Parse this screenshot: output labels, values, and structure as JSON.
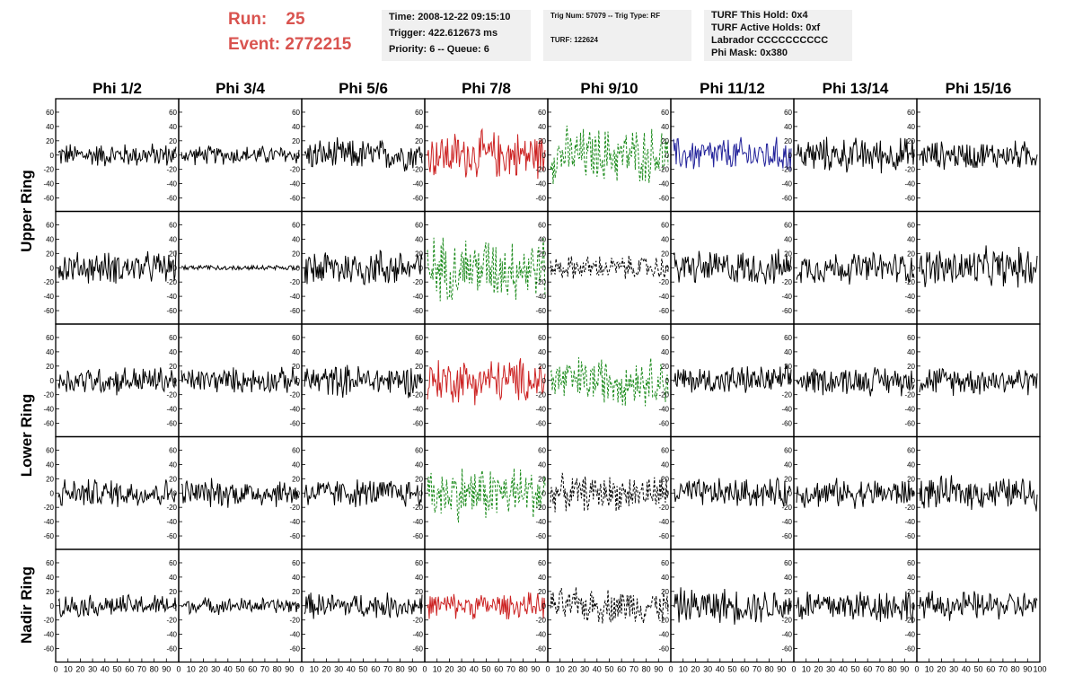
{
  "header": {
    "run_label": "Run:",
    "run_value": "25",
    "event_label": "Event:",
    "event_value": "2772215",
    "time": "Time: 2008-12-22 09:15:10",
    "trigger": "Trigger: 422.612673 ms",
    "priority": "Priority: 6 -- Queue: 6",
    "trig": "Trig Num: 57079 -- Trig Type: RF",
    "turf": "TURF: 122624",
    "hold": "TURF This Hold: 0x4",
    "active": "TURF Active Holds: 0xf",
    "labrador": "Labrador CCCCCCCCCC",
    "phimask": "Phi Mask: 0x380"
  },
  "columns": [
    "Phi 1/2",
    "Phi 3/4",
    "Phi 5/6",
    "Phi 7/8",
    "Phi 9/10",
    "Phi 11/12",
    "Phi 13/14",
    "Phi 15/16"
  ],
  "rings": [
    "Upper Ring",
    "Lower Ring",
    "Nadir Ring"
  ],
  "colors": {
    "black": "#000000",
    "red": "#cc2222",
    "green": "#1a8a1a",
    "blue": "#22229a",
    "title": "#d9534f"
  },
  "chart_data": {
    "type": "line",
    "grid": {
      "rows": 5,
      "cols": 8
    },
    "ylim": [
      -70,
      70
    ],
    "xlim": [
      0,
      100
    ],
    "yticks": [
      "60",
      "40",
      "20",
      "0",
      "-20",
      "-40",
      "-60"
    ],
    "xticks": [
      "0",
      "10",
      "20",
      "30",
      "40",
      "50",
      "60",
      "70",
      "80",
      "90",
      "100"
    ],
    "panels": [
      [
        "black",
        "black",
        "black",
        "red",
        "green-dashed",
        "blue",
        "black",
        "black"
      ],
      [
        "black",
        "black-flat",
        "black",
        "green-dashed",
        "black-dashed",
        "black",
        "black",
        "black"
      ],
      [
        "black",
        "black",
        "black",
        "red",
        "green-dashed",
        "black",
        "black",
        "black"
      ],
      [
        "black",
        "black",
        "black",
        "green-dashed",
        "black-dashed",
        "black",
        "black",
        "black"
      ],
      [
        "black",
        "black",
        "black",
        "red",
        "black-dashed",
        "black",
        "black",
        "black"
      ]
    ],
    "amplitudes": [
      [
        15,
        12,
        20,
        30,
        35,
        22,
        22,
        18
      ],
      [
        20,
        3,
        25,
        40,
        15,
        22,
        20,
        25
      ],
      [
        18,
        16,
        20,
        28,
        30,
        18,
        18,
        18
      ],
      [
        18,
        18,
        18,
        35,
        22,
        18,
        18,
        20
      ],
      [
        14,
        10,
        16,
        16,
        22,
        22,
        22,
        18
      ]
    ]
  }
}
